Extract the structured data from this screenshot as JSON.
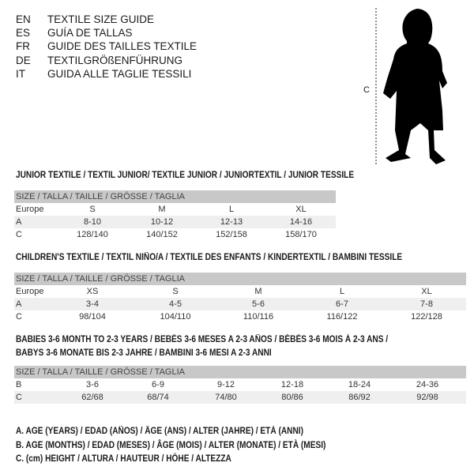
{
  "languages": [
    {
      "code": "EN",
      "title": "TEXTILE SIZE GUIDE"
    },
    {
      "code": "ES",
      "title": "GUÍA DE TALLAS"
    },
    {
      "code": "FR",
      "title": "GUIDE DES TAILLES TEXTILE"
    },
    {
      "code": "DE",
      "title": "TEXTILGRÖßENFÜHRUNG"
    },
    {
      "code": "IT",
      "title": "GUIDA ALLE TAGLIE TESSILI"
    }
  ],
  "figure": {
    "height_label": "C"
  },
  "size_header": "SIZE / TALLA / TAILLE / GRÖSSE / TAGLIA",
  "junior": {
    "title": "JUNIOR TEXTILE / TEXTIL JUNIOR/ TEXTILE JUNIOR / JUNIORTEXTIL / JUNIOR TESSILE",
    "rows": [
      {
        "label": "Europe",
        "values": [
          "S",
          "M",
          "L",
          "XL"
        ]
      },
      {
        "label": "A",
        "values": [
          "8-10",
          "10-12",
          "12-13",
          "14-16"
        ]
      },
      {
        "label": "C",
        "values": [
          "128/140",
          "140/152",
          "152/158",
          "158/170"
        ]
      }
    ]
  },
  "children": {
    "title": "CHILDREN'S TEXTILE / TEXTIL NIÑO/A / TEXTILE DES ENFANTS / KINDERTEXTIL / BAMBINI TESSILE",
    "rows": [
      {
        "label": "Europe",
        "values": [
          "XS",
          "S",
          "M",
          "L",
          "XL"
        ]
      },
      {
        "label": "A",
        "values": [
          "3-4",
          "4-5",
          "5-6",
          "6-7",
          "7-8"
        ]
      },
      {
        "label": "C",
        "values": [
          "98/104",
          "104/110",
          "110/116",
          "116/122",
          "122/128"
        ]
      }
    ]
  },
  "babies": {
    "title_line1": "BABIES 3-6 MONTH TO 2-3 YEARS / BEBÉS 3-6 MESES A 2-3 AÑOS / BÉBÉS 3-6 MOIS À 2-3 ANS /",
    "title_line2": "BABYS 3-6 MONATE BIS 2-3 JAHRE / BAMBINI 3-6 MESI A 2-3 ANNI",
    "rows": [
      {
        "label": "B",
        "values": [
          "3-6",
          "6-9",
          "9-12",
          "12-18",
          "18-24",
          "24-36"
        ]
      },
      {
        "label": "C",
        "values": [
          "62/68",
          "68/74",
          "74/80",
          "80/86",
          "86/92",
          "92/98"
        ]
      }
    ]
  },
  "legend": [
    "A. AGE (YEARS) / EDAD (AÑOS) / ÂGE (ANS) / ALTER (JAHRE) / ETÀ (ANNI)",
    "B. AGE (MONTHS) / EDAD (MESES) / ÂGE (MOIS) / ALTER (MONATE) / ETÀ (MESI)",
    "C. (cm) HEIGHT / ALTURA / HAUTEUR / HÖHE / ALTEZZA"
  ]
}
